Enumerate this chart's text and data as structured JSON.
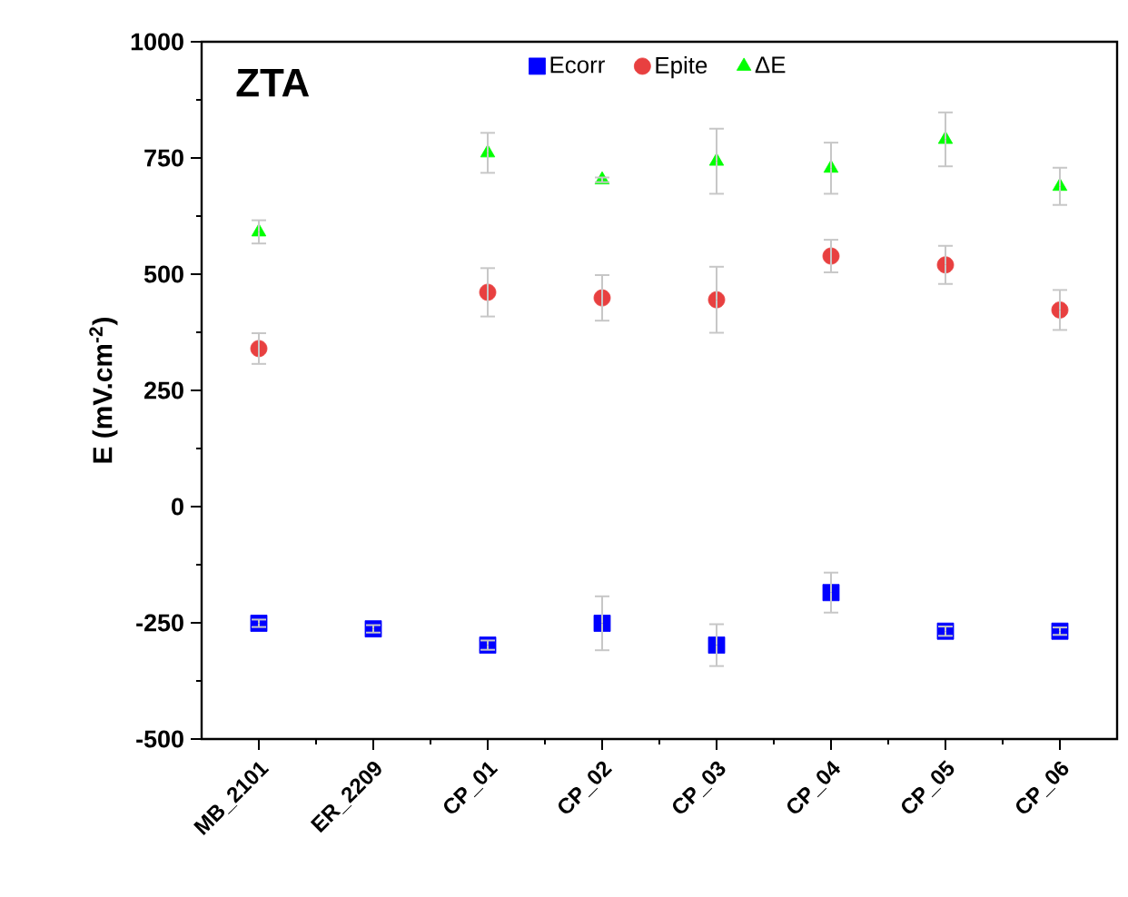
{
  "chart_data": {
    "type": "scatter",
    "ylabel": "E (mV.cm$^{-2}$)",
    "annotations": [
      "ZTA"
    ],
    "categories": [
      "MB_2101",
      "ER_2209",
      "CP_01",
      "CP_02",
      "CP_03",
      "CP_04",
      "CP_05",
      "CP_06"
    ],
    "ylim": [
      -500,
      1000
    ],
    "yticks": [
      -500,
      -250,
      0,
      250,
      500,
      750,
      1000
    ],
    "legend": "top",
    "grid": false,
    "series": [
      {
        "name": "Ecorr",
        "color": "#0000ff",
        "marker": "square",
        "values": [
          -251,
          -263,
          -298,
          -251,
          -298,
          -185,
          -268,
          -268
        ],
        "errors": [
          8,
          8,
          10,
          58,
          45,
          43,
          10,
          8
        ]
      },
      {
        "name": "Epite",
        "color": "#e84040",
        "marker": "circle",
        "values": [
          340,
          null,
          461,
          449,
          445,
          539,
          520,
          423
        ],
        "errors": [
          33,
          null,
          52,
          49,
          71,
          35,
          41,
          43
        ]
      },
      {
        "name": "ΔE",
        "color": "#00ff00",
        "marker": "triangle",
        "values": [
          591,
          null,
          761,
          703,
          743,
          728,
          790,
          689
        ],
        "errors": [
          25,
          null,
          43,
          5,
          70,
          55,
          58,
          40
        ]
      }
    ]
  }
}
